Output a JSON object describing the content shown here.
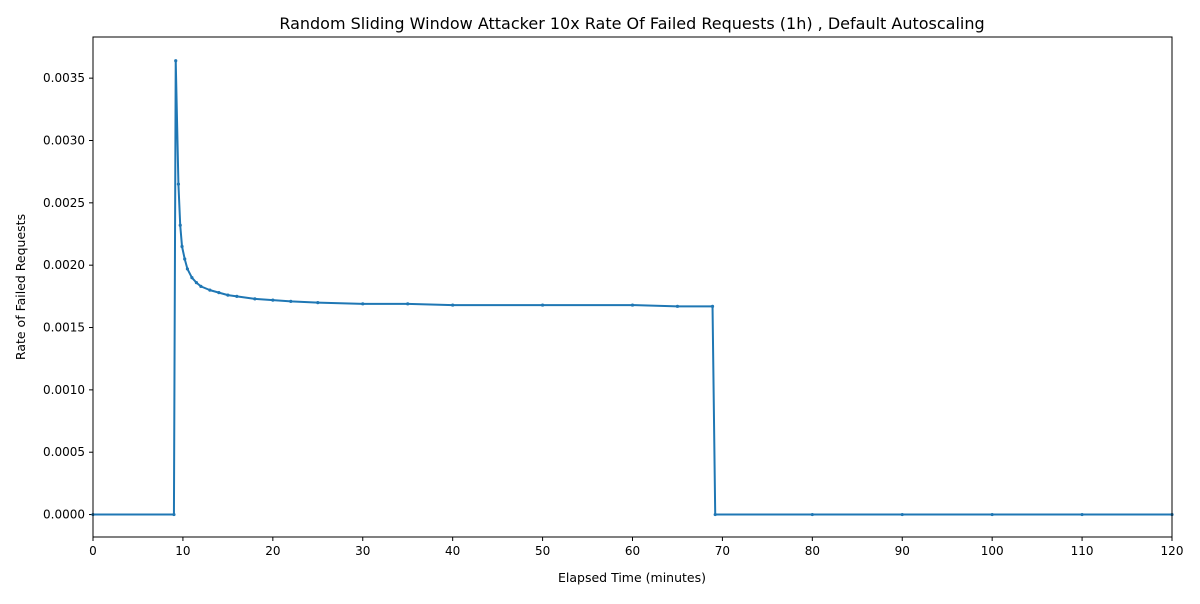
{
  "chart_data": {
    "type": "line",
    "title": "Random Sliding Window Attacker 10x Rate Of Failed Requests (1h) , Default Autoscaling",
    "xlabel": "Elapsed Time (minutes)",
    "ylabel": "Rate of Failed Requests",
    "xlim": [
      0,
      120
    ],
    "ylim": [
      -0.00018,
      0.00383
    ],
    "x_ticks": [
      0,
      10,
      20,
      30,
      40,
      50,
      60,
      70,
      80,
      90,
      100,
      110,
      120
    ],
    "x_tick_labels": [
      "0",
      "10",
      "20",
      "30",
      "40",
      "50",
      "60",
      "70",
      "80",
      "90",
      "100",
      "110",
      "120"
    ],
    "y_ticks": [
      0,
      0.0005,
      0.001,
      0.0015,
      0.002,
      0.0025,
      0.003,
      0.0035
    ],
    "y_tick_labels": [
      "0.0000",
      "0.0005",
      "0.0010",
      "0.0015",
      "0.0020",
      "0.0025",
      "0.0030",
      "0.0035"
    ],
    "grid": false,
    "legend": "none",
    "series": [
      {
        "color": "#1f77b4",
        "marker": "dot",
        "points": [
          [
            0,
            0
          ],
          [
            9,
            0
          ],
          [
            9.2,
            0.00364
          ],
          [
            9.5,
            0.00265
          ],
          [
            9.7,
            0.00232
          ],
          [
            9.9,
            0.00215
          ],
          [
            10.2,
            0.00205
          ],
          [
            10.5,
            0.00197
          ],
          [
            11,
            0.0019
          ],
          [
            11.5,
            0.00186
          ],
          [
            12,
            0.00183
          ],
          [
            13,
            0.0018
          ],
          [
            14,
            0.00178
          ],
          [
            15,
            0.00176
          ],
          [
            16,
            0.00175
          ],
          [
            18,
            0.00173
          ],
          [
            20,
            0.00172
          ],
          [
            22,
            0.00171
          ],
          [
            25,
            0.0017
          ],
          [
            30,
            0.00169
          ],
          [
            35,
            0.00169
          ],
          [
            40,
            0.00168
          ],
          [
            50,
            0.00168
          ],
          [
            60,
            0.00168
          ],
          [
            65,
            0.00167
          ],
          [
            68.9,
            0.00167
          ],
          [
            69.2,
            0
          ],
          [
            80,
            0
          ],
          [
            90,
            0
          ],
          [
            100,
            0
          ],
          [
            110,
            0
          ],
          [
            120,
            0
          ]
        ]
      }
    ]
  }
}
